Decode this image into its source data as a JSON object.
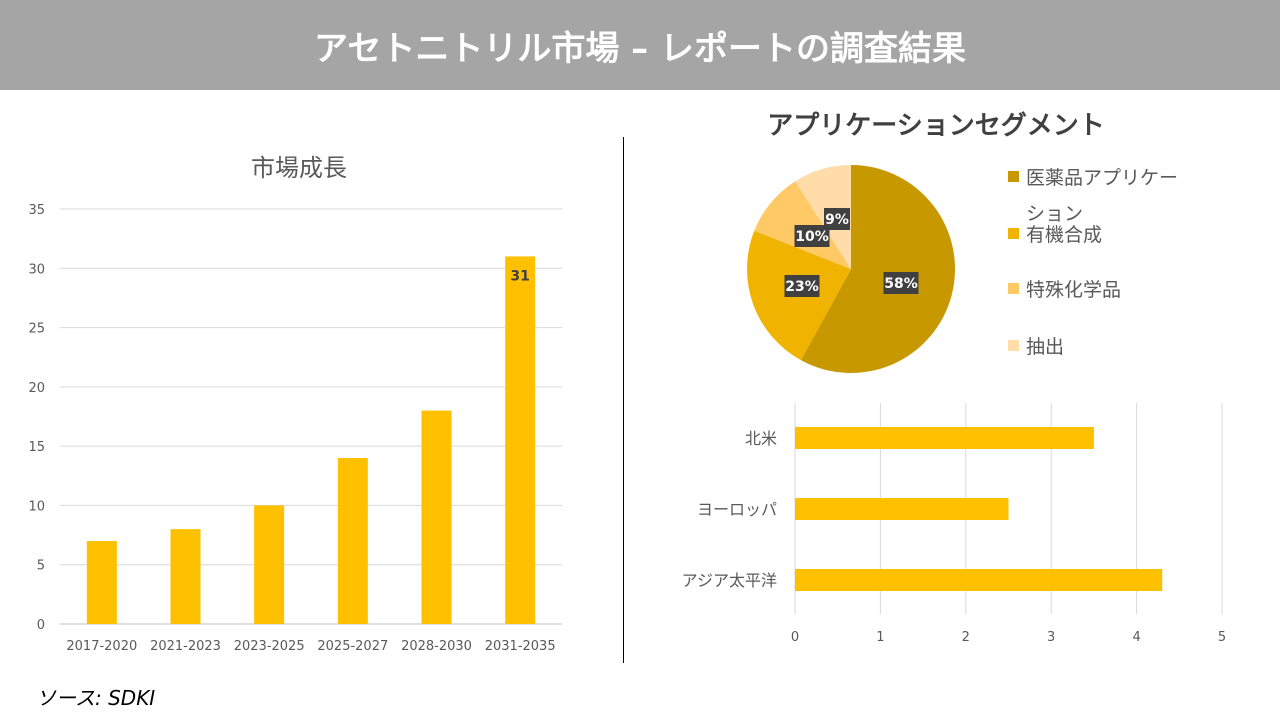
{
  "header": {
    "title": "アセトニトリル市場 – レポートの調査結果"
  },
  "source": "ソース: SDKI",
  "colors": {
    "header_bg": "#a5a5a5",
    "bar": "#ffc000",
    "pie": [
      "#c89800",
      "#f0b400",
      "#ffc966",
      "#ffdca8"
    ],
    "label_bg": "#404040"
  },
  "chart_data": [
    {
      "type": "bar",
      "title": "市場成長",
      "categories": [
        "2017-2020",
        "2021-2023",
        "2023-2025",
        "2025-2027",
        "2028-2030",
        "2031-2035"
      ],
      "values": [
        7,
        8,
        10,
        14,
        18,
        31
      ],
      "ylim": [
        0,
        35
      ],
      "yticks": [
        0,
        5,
        10,
        15,
        20,
        25,
        30,
        35
      ],
      "data_labels": {
        "5": "31"
      },
      "grid": true
    },
    {
      "type": "pie",
      "title": "アプリケーションセグメント",
      "categories": [
        "医薬品アプリケーション",
        "有機合成",
        "特殊化学品",
        "抽出"
      ],
      "values": [
        58,
        23,
        10,
        9
      ],
      "labels": [
        "58%",
        "23%",
        "10%",
        "9%"
      ],
      "legend": "right"
    },
    {
      "type": "bar",
      "orientation": "horizontal",
      "categories": [
        "北米",
        "ヨーロッパ",
        "アジア太平洋"
      ],
      "values": [
        3.5,
        2.5,
        4.3
      ],
      "xlim": [
        0,
        5
      ],
      "xticks": [
        0,
        1,
        2,
        3,
        4,
        5
      ],
      "grid": true
    }
  ]
}
